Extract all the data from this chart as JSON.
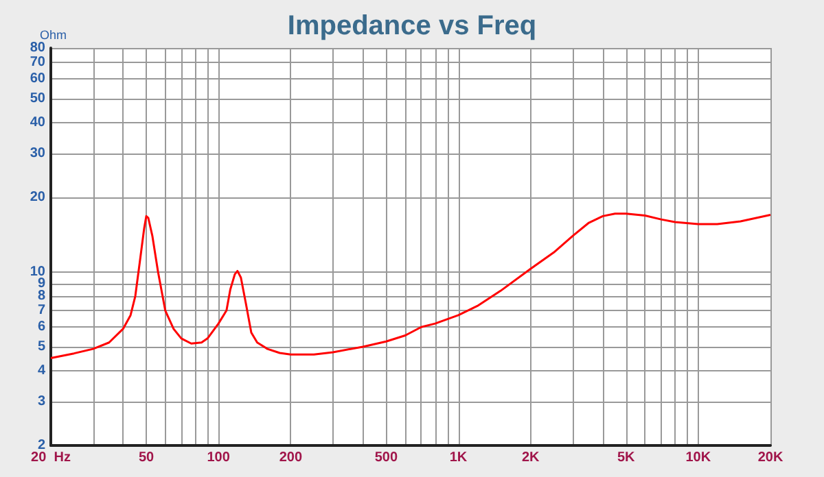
{
  "chart_data": {
    "type": "line",
    "title": "Impedance vs Freq",
    "ylabel": "Ohm",
    "log": "xy",
    "grid": true,
    "marker": "none",
    "line_style": "solid",
    "x": [
      20,
      25,
      30,
      35,
      40,
      43,
      45,
      47,
      49,
      50,
      51,
      53,
      56,
      60,
      65,
      70,
      77,
      85,
      90,
      100,
      108,
      112,
      117,
      120,
      124,
      130,
      137,
      145,
      160,
      180,
      200,
      250,
      300,
      400,
      500,
      600,
      700,
      800,
      1000,
      1200,
      1500,
      2000,
      2500,
      3000,
      3500,
      4000,
      4500,
      5000,
      6000,
      7000,
      8000,
      10000,
      12000,
      15000,
      20000
    ],
    "series": [
      {
        "color": "#ff0000",
        "values": [
          4.5,
          4.7,
          4.9,
          5.2,
          5.9,
          6.7,
          8,
          11,
          15,
          16.8,
          16.5,
          14,
          10,
          7,
          5.9,
          5.4,
          5.15,
          5.2,
          5.4,
          6.2,
          7,
          8.5,
          9.8,
          10.1,
          9.5,
          7.5,
          5.7,
          5.2,
          4.9,
          4.72,
          4.65,
          4.65,
          4.75,
          5,
          5.25,
          5.55,
          6,
          6.2,
          6.7,
          7.3,
          8.4,
          10.3,
          12,
          14,
          15.8,
          16.8,
          17.2,
          17.2,
          16.9,
          16.3,
          15.9,
          15.6,
          15.6,
          16,
          17
        ]
      }
    ],
    "xlim": [
      20,
      20000
    ],
    "xticks": [
      {
        "value": 20,
        "label": "20  Hz"
      },
      {
        "value": 30,
        "label": null
      },
      {
        "value": 40,
        "label": null
      },
      50,
      {
        "value": 60,
        "label": null
      },
      {
        "value": 70,
        "label": null
      },
      {
        "value": 80,
        "label": null
      },
      {
        "value": 90,
        "label": null
      },
      100,
      200,
      {
        "value": 300,
        "label": null
      },
      {
        "value": 400,
        "label": null
      },
      500,
      {
        "value": 600,
        "label": null
      },
      {
        "value": 700,
        "label": null
      },
      {
        "value": 800,
        "label": null
      },
      {
        "value": 900,
        "label": null
      },
      {
        "value": 1000,
        "label": "1K"
      },
      {
        "value": 2000,
        "label": "2K"
      },
      {
        "value": 3000,
        "label": null
      },
      {
        "value": 4000,
        "label": null
      },
      {
        "value": 5000,
        "label": "5K"
      },
      {
        "value": 6000,
        "label": null
      },
      {
        "value": 7000,
        "label": null
      },
      {
        "value": 8000,
        "label": null
      },
      {
        "value": 9000,
        "label": null
      },
      {
        "value": 10000,
        "label": "10K"
      },
      {
        "value": 20000,
        "label": "20K"
      }
    ],
    "ylim": [
      2,
      80
    ],
    "yticks": [
      2,
      3,
      4,
      5,
      6,
      7,
      8,
      9,
      10,
      20,
      30,
      40,
      50,
      60,
      70,
      80
    ]
  }
}
